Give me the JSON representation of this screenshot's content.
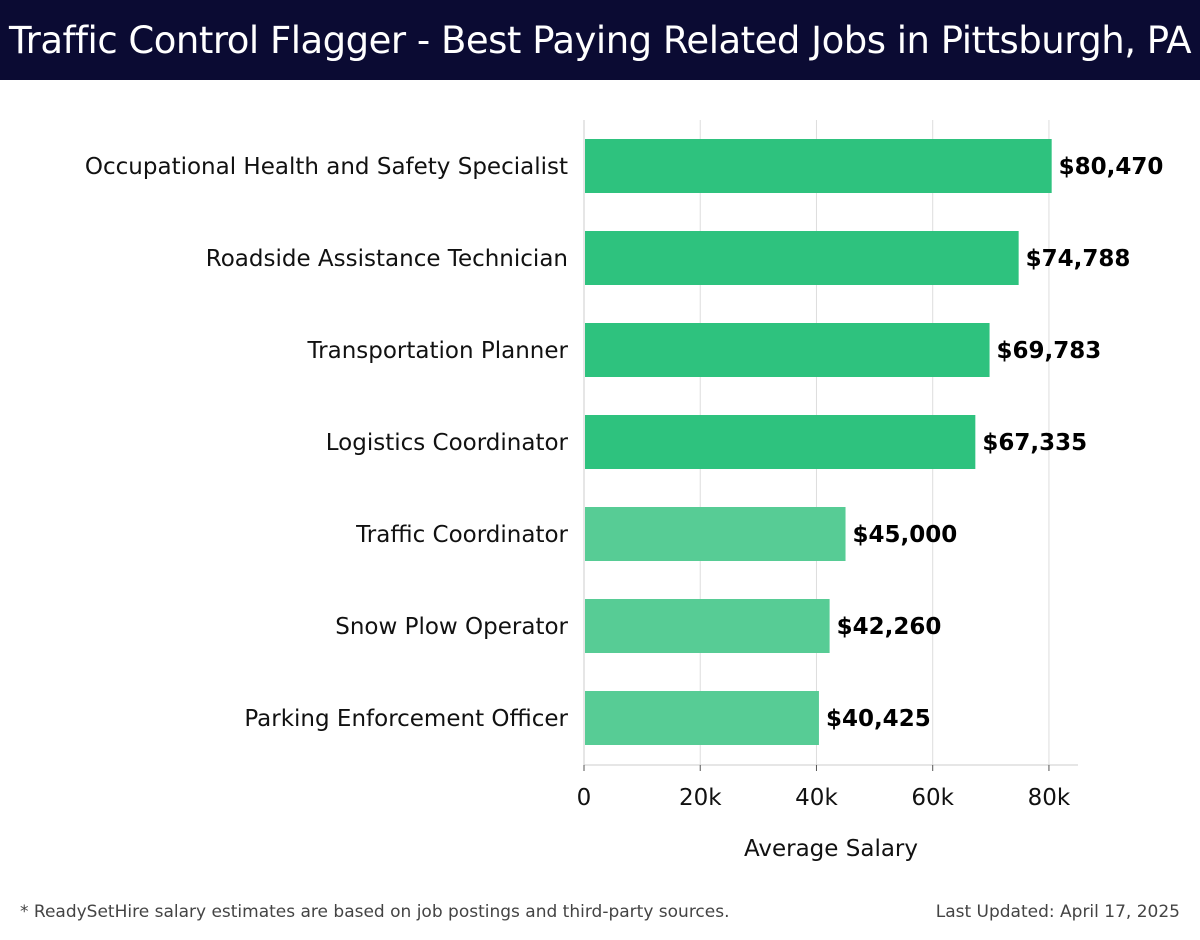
{
  "header": {
    "title": "Traffic Control Flagger - Best Paying Related Jobs in Pittsburgh, PA"
  },
  "chart_data": {
    "type": "bar",
    "orientation": "horizontal",
    "categories": [
      "Occupational Health and Safety Specialist",
      "Roadside Assistance Technician",
      "Transportation Planner",
      "Logistics Coordinator",
      "Traffic Coordinator",
      "Snow Plow Operator",
      "Parking Enforcement Officer"
    ],
    "values": [
      80470,
      74788,
      69783,
      67335,
      45000,
      42260,
      40425
    ],
    "value_labels": [
      "$80,470",
      "$74,788",
      "$69,783",
      "$67,335",
      "$45,000",
      "$42,260",
      "$40,425"
    ],
    "xlabel": "Average Salary",
    "ylabel": "",
    "xlim": [
      0,
      85000
    ],
    "xticks": [
      0,
      20000,
      40000,
      60000,
      80000
    ],
    "xtick_labels": [
      "0",
      "20k",
      "40k",
      "60k",
      "80k"
    ],
    "grid": true,
    "colors": {
      "bar_strong": "#2ec27e",
      "bar_light": "#57cc95",
      "grid": "#dddddd",
      "axis": "#cccccc"
    }
  },
  "footer": {
    "note": "* ReadySetHire salary estimates are based on job postings and third-party sources.",
    "updated": "Last Updated: April 17, 2025"
  }
}
